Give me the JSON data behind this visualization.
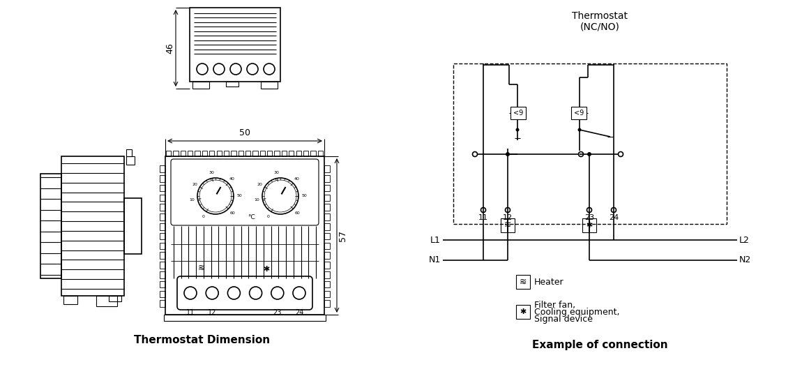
{
  "bg_color": "#ffffff",
  "left_caption": "Thermostat Dimension",
  "right_caption": "Example of connection",
  "thermostat_title_1": "Thermostat",
  "thermostat_title_2": "(NC/NO)",
  "dim_46": "46",
  "dim_50": "50",
  "dim_57": "57",
  "resistance_label": "<9",
  "heater_label": "Heater",
  "fan_label_1": "Filter fan,",
  "fan_label_2": "Cooling equipment,",
  "fan_label_3": "Signal device",
  "L1_label": "L1",
  "N1_label": "N1",
  "L2_label": "L2",
  "N2_label": "N2",
  "scale_labels": [
    "0",
    "10",
    "20",
    "30",
    "40",
    "50",
    "60"
  ]
}
